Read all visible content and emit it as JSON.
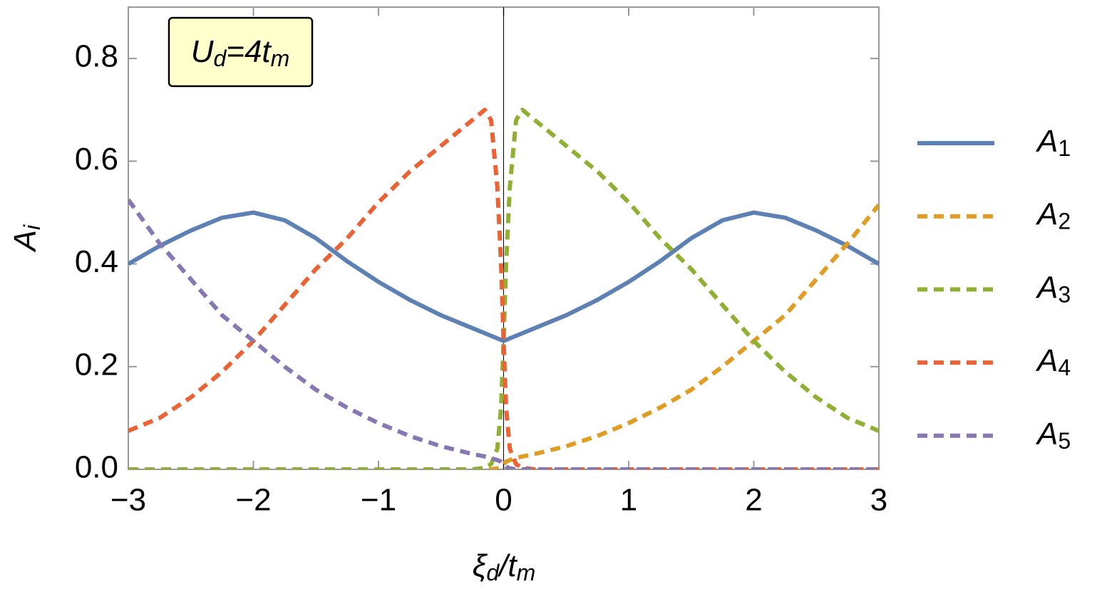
{
  "chart_data": {
    "type": "line",
    "xlabel": [
      "ξ",
      "d",
      "/t",
      "m"
    ],
    "ylabel": [
      "A",
      "i"
    ],
    "annotation": [
      "U",
      "d",
      "=4t",
      "m"
    ],
    "xlim": [
      -3,
      3
    ],
    "ylim": [
      0,
      0.9
    ],
    "xticks": [
      {
        "value": -3,
        "label": "−3"
      },
      {
        "value": -2,
        "label": "−2"
      },
      {
        "value": -1,
        "label": "−1"
      },
      0,
      1,
      2,
      3
    ],
    "yticks": [
      {
        "value": 0,
        "label": "0.0"
      },
      0.2,
      0.4,
      0.6,
      0.8
    ],
    "x": [
      -3,
      -2.75,
      -2.5,
      -2.25,
      -2,
      -1.75,
      -1.5,
      -1.25,
      -1,
      -0.75,
      -0.5,
      -0.25,
      -0.15,
      -0.1,
      -0.05,
      -0.02,
      0,
      0.02,
      0.05,
      0.1,
      0.15,
      0.25,
      0.5,
      0.75,
      1,
      1.25,
      1.5,
      1.75,
      2,
      2.25,
      2.5,
      2.75,
      3
    ],
    "series": [
      {
        "name": "A1",
        "color": "#5e81b5",
        "dashed": false,
        "values": [
          0.4,
          0.435,
          0.465,
          0.49,
          0.5,
          0.485,
          0.45,
          0.405,
          0.365,
          0.33,
          0.3,
          0.275,
          0.265,
          0.26,
          0.255,
          0.252,
          0.25,
          0.252,
          0.255,
          0.26,
          0.265,
          0.275,
          0.3,
          0.33,
          0.365,
          0.405,
          0.45,
          0.485,
          0.5,
          0.49,
          0.465,
          0.435,
          0.4
        ]
      },
      {
        "name": "A2",
        "color": "#e19c24",
        "dashed": true,
        "values": [
          0,
          0,
          0,
          0,
          0,
          0,
          0,
          0,
          0,
          0,
          0,
          0,
          0,
          0,
          0.002,
          0.005,
          0.01,
          0.015,
          0.018,
          0.022,
          0.025,
          0.03,
          0.045,
          0.065,
          0.09,
          0.12,
          0.155,
          0.2,
          0.25,
          0.3,
          0.37,
          0.44,
          0.515
        ]
      },
      {
        "name": "A3",
        "color": "#8fb032",
        "dashed": true,
        "values": [
          0,
          0,
          0,
          0,
          0,
          0,
          0,
          0,
          0,
          0,
          0,
          0,
          0.003,
          0.01,
          0.04,
          0.12,
          0.25,
          0.4,
          0.55,
          0.68,
          0.7,
          0.68,
          0.63,
          0.58,
          0.52,
          0.45,
          0.39,
          0.32,
          0.25,
          0.19,
          0.14,
          0.1,
          0.075
        ]
      },
      {
        "name": "A4",
        "color": "#eb6235",
        "dashed": true,
        "values": [
          0.075,
          0.1,
          0.14,
          0.19,
          0.25,
          0.32,
          0.39,
          0.45,
          0.52,
          0.58,
          0.63,
          0.68,
          0.7,
          0.68,
          0.55,
          0.4,
          0.25,
          0.12,
          0.04,
          0.01,
          0.003,
          0,
          0,
          0,
          0,
          0,
          0,
          0,
          0,
          0,
          0,
          0,
          0
        ]
      },
      {
        "name": "A5",
        "color": "#8778b3",
        "dashed": true,
        "values": [
          0.525,
          0.44,
          0.37,
          0.3,
          0.25,
          0.2,
          0.155,
          0.12,
          0.09,
          0.065,
          0.045,
          0.03,
          0.025,
          0.022,
          0.018,
          0.015,
          0.01,
          0.005,
          0.002,
          0,
          0,
          0,
          0,
          0,
          0,
          0,
          0,
          0,
          0,
          0,
          0,
          0,
          0
        ]
      }
    ]
  }
}
